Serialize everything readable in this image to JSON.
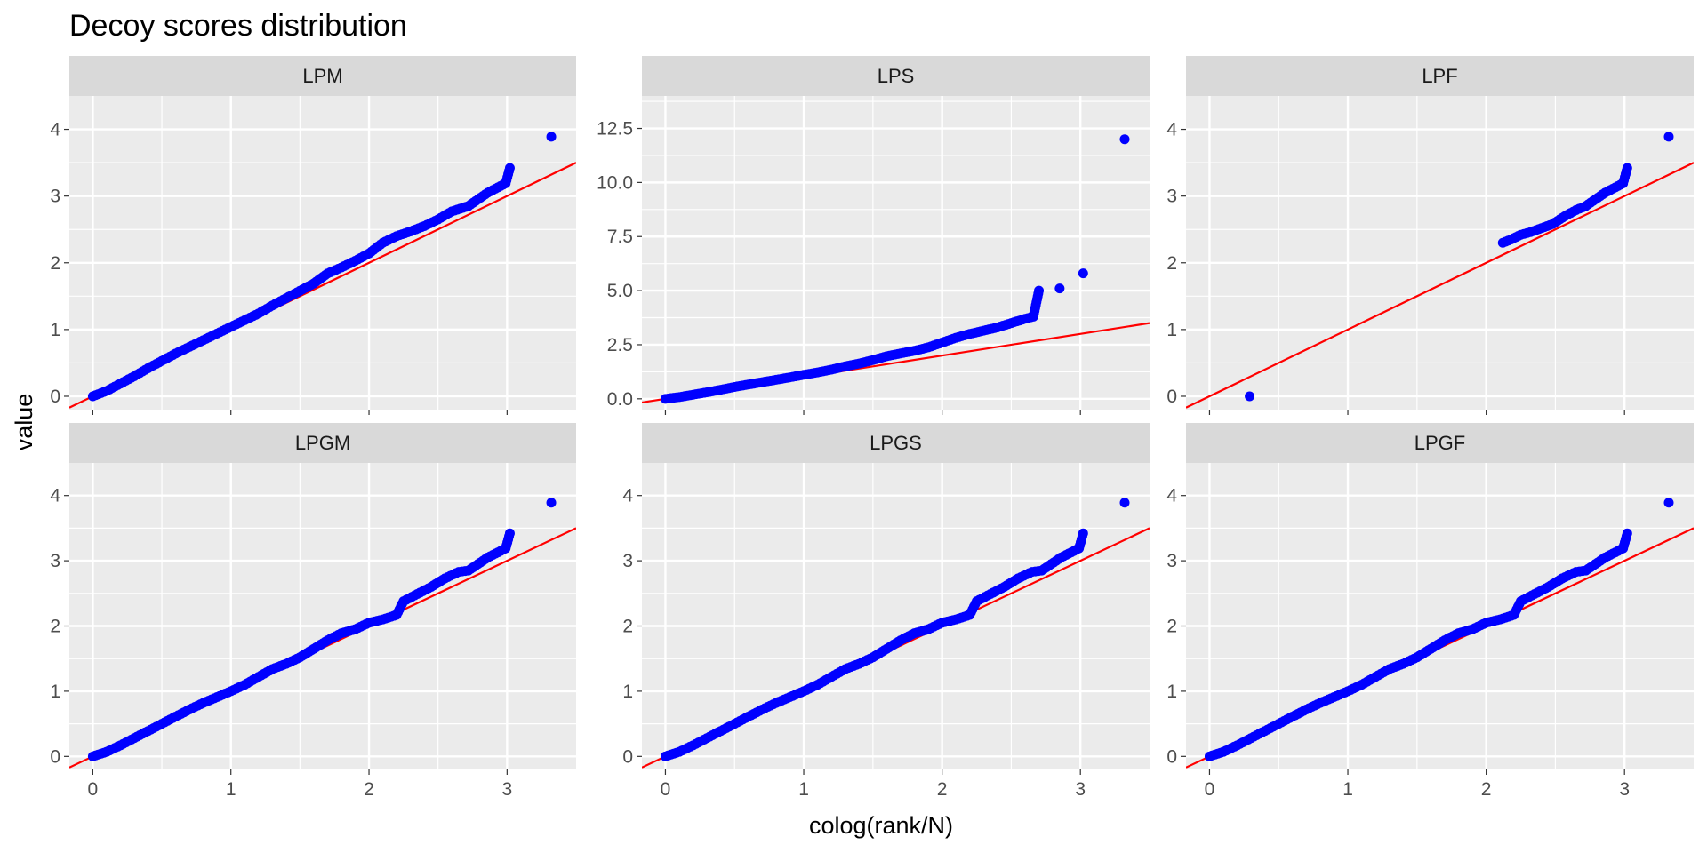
{
  "chart_data": {
    "type": "scatter",
    "title": "Decoy scores distribution",
    "xlabel": "colog(rank/N)",
    "ylabel": "value",
    "colors": {
      "points": "#0000ff",
      "reference_line": "#ff0000",
      "panel_bg": "#ebebeb",
      "strip_bg": "#d9d9d9",
      "grid": "#ffffff"
    },
    "reference_line": {
      "slope": 1,
      "intercept": 0
    },
    "panels": [
      {
        "name": "LPM",
        "xlim": [
          -0.17,
          3.5
        ],
        "ylim": [
          -0.2,
          4.5
        ],
        "xticks": [
          0,
          1,
          2,
          3
        ],
        "yticks": [
          0,
          1,
          2,
          3,
          4
        ],
        "ytick_labels": [
          "0",
          "1",
          "2",
          "3",
          "4"
        ],
        "points": [
          [
            0.0,
            0.0
          ],
          [
            0.1,
            0.08
          ],
          [
            0.2,
            0.19
          ],
          [
            0.3,
            0.3
          ],
          [
            0.4,
            0.42
          ],
          [
            0.5,
            0.53
          ],
          [
            0.6,
            0.64
          ],
          [
            0.7,
            0.74
          ],
          [
            0.8,
            0.84
          ],
          [
            0.9,
            0.94
          ],
          [
            1.0,
            1.04
          ],
          [
            1.1,
            1.14
          ],
          [
            1.2,
            1.24
          ],
          [
            1.3,
            1.36
          ],
          [
            1.4,
            1.47
          ],
          [
            1.5,
            1.58
          ],
          [
            1.6,
            1.69
          ],
          [
            1.7,
            1.84
          ],
          [
            1.8,
            1.93
          ],
          [
            1.9,
            2.03
          ],
          [
            2.0,
            2.14
          ],
          [
            2.1,
            2.3
          ],
          [
            2.2,
            2.4
          ],
          [
            2.3,
            2.47
          ],
          [
            2.4,
            2.55
          ],
          [
            2.5,
            2.65
          ],
          [
            2.6,
            2.77
          ],
          [
            2.72,
            2.85
          ],
          [
            2.86,
            3.05
          ],
          [
            2.99,
            3.19
          ],
          [
            3.02,
            3.42
          ],
          [
            3.32,
            3.89
          ]
        ]
      },
      {
        "name": "LPS",
        "xlim": [
          -0.17,
          3.5
        ],
        "ylim": [
          -0.5,
          14.0
        ],
        "xticks": [
          0,
          1,
          2,
          3
        ],
        "yticks": [
          0,
          2.5,
          5.0,
          7.5,
          10.0,
          12.5
        ],
        "ytick_labels": [
          "0.0",
          "2.5",
          "5.0",
          "7.5",
          "10.0",
          "12.5"
        ],
        "points": [
          [
            0.0,
            0.0
          ],
          [
            0.1,
            0.08
          ],
          [
            0.2,
            0.19
          ],
          [
            0.3,
            0.3
          ],
          [
            0.4,
            0.42
          ],
          [
            0.5,
            0.55
          ],
          [
            0.6,
            0.66
          ],
          [
            0.7,
            0.77
          ],
          [
            0.8,
            0.88
          ],
          [
            0.9,
            0.99
          ],
          [
            1.0,
            1.11
          ],
          [
            1.1,
            1.22
          ],
          [
            1.2,
            1.35
          ],
          [
            1.3,
            1.5
          ],
          [
            1.4,
            1.63
          ],
          [
            1.5,
            1.79
          ],
          [
            1.6,
            1.97
          ],
          [
            1.7,
            2.1
          ],
          [
            1.8,
            2.22
          ],
          [
            1.9,
            2.38
          ],
          [
            2.0,
            2.6
          ],
          [
            2.1,
            2.82
          ],
          [
            2.2,
            3.0
          ],
          [
            2.3,
            3.15
          ],
          [
            2.4,
            3.3
          ],
          [
            2.5,
            3.5
          ],
          [
            2.6,
            3.7
          ],
          [
            2.66,
            3.8
          ],
          [
            2.7,
            5.0
          ],
          [
            2.85,
            5.1
          ],
          [
            3.02,
            5.8
          ],
          [
            3.32,
            12.0
          ]
        ]
      },
      {
        "name": "LPF",
        "xlim": [
          -0.17,
          3.5
        ],
        "ylim": [
          -0.2,
          4.5
        ],
        "xticks": [
          0,
          1,
          2,
          3
        ],
        "yticks": [
          0,
          1,
          2,
          3,
          4
        ],
        "ytick_labels": [
          "0",
          "1",
          "2",
          "3",
          "4"
        ],
        "points": [
          [
            0.29,
            0.0
          ],
          [
            2.12,
            2.3
          ],
          [
            2.18,
            2.35
          ],
          [
            2.25,
            2.42
          ],
          [
            2.32,
            2.46
          ],
          [
            2.4,
            2.52
          ],
          [
            2.48,
            2.58
          ],
          [
            2.57,
            2.7
          ],
          [
            2.65,
            2.79
          ],
          [
            2.72,
            2.85
          ],
          [
            2.86,
            3.05
          ],
          [
            2.99,
            3.19
          ],
          [
            3.02,
            3.42
          ],
          [
            3.32,
            3.89
          ]
        ]
      },
      {
        "name": "LPGM",
        "xlim": [
          -0.17,
          3.5
        ],
        "ylim": [
          -0.2,
          4.5
        ],
        "xticks": [
          0,
          1,
          2,
          3
        ],
        "yticks": [
          0,
          1,
          2,
          3,
          4
        ],
        "ytick_labels": [
          "0",
          "1",
          "2",
          "3",
          "4"
        ],
        "points": [
          [
            0.0,
            0.0
          ],
          [
            0.1,
            0.07
          ],
          [
            0.2,
            0.17
          ],
          [
            0.3,
            0.28
          ],
          [
            0.4,
            0.39
          ],
          [
            0.5,
            0.5
          ],
          [
            0.6,
            0.61
          ],
          [
            0.7,
            0.72
          ],
          [
            0.8,
            0.82
          ],
          [
            0.9,
            0.91
          ],
          [
            1.0,
            1.0
          ],
          [
            1.1,
            1.1
          ],
          [
            1.2,
            1.22
          ],
          [
            1.3,
            1.34
          ],
          [
            1.4,
            1.42
          ],
          [
            1.5,
            1.52
          ],
          [
            1.6,
            1.65
          ],
          [
            1.7,
            1.78
          ],
          [
            1.8,
            1.89
          ],
          [
            1.9,
            1.95
          ],
          [
            2.0,
            2.05
          ],
          [
            2.1,
            2.1
          ],
          [
            2.2,
            2.17
          ],
          [
            2.25,
            2.38
          ],
          [
            2.35,
            2.49
          ],
          [
            2.45,
            2.6
          ],
          [
            2.55,
            2.73
          ],
          [
            2.65,
            2.83
          ],
          [
            2.72,
            2.85
          ],
          [
            2.86,
            3.05
          ],
          [
            2.99,
            3.19
          ],
          [
            3.02,
            3.42
          ],
          [
            3.32,
            3.89
          ]
        ]
      },
      {
        "name": "LPGS",
        "xlim": [
          -0.17,
          3.5
        ],
        "ylim": [
          -0.2,
          4.5
        ],
        "xticks": [
          0,
          1,
          2,
          3
        ],
        "yticks": [
          0,
          1,
          2,
          3,
          4
        ],
        "ytick_labels": [
          "0",
          "1",
          "2",
          "3",
          "4"
        ],
        "points": [
          [
            0.0,
            0.0
          ],
          [
            0.1,
            0.07
          ],
          [
            0.2,
            0.17
          ],
          [
            0.3,
            0.28
          ],
          [
            0.4,
            0.39
          ],
          [
            0.5,
            0.5
          ],
          [
            0.6,
            0.61
          ],
          [
            0.7,
            0.72
          ],
          [
            0.8,
            0.82
          ],
          [
            0.9,
            0.91
          ],
          [
            1.0,
            1.0
          ],
          [
            1.1,
            1.1
          ],
          [
            1.2,
            1.22
          ],
          [
            1.3,
            1.34
          ],
          [
            1.4,
            1.42
          ],
          [
            1.5,
            1.52
          ],
          [
            1.6,
            1.65
          ],
          [
            1.7,
            1.78
          ],
          [
            1.8,
            1.89
          ],
          [
            1.9,
            1.95
          ],
          [
            2.0,
            2.05
          ],
          [
            2.1,
            2.1
          ],
          [
            2.2,
            2.17
          ],
          [
            2.25,
            2.38
          ],
          [
            2.35,
            2.49
          ],
          [
            2.45,
            2.6
          ],
          [
            2.55,
            2.73
          ],
          [
            2.65,
            2.83
          ],
          [
            2.72,
            2.85
          ],
          [
            2.86,
            3.05
          ],
          [
            2.99,
            3.19
          ],
          [
            3.02,
            3.42
          ],
          [
            3.32,
            3.89
          ]
        ]
      },
      {
        "name": "LPGF",
        "xlim": [
          -0.17,
          3.5
        ],
        "ylim": [
          -0.2,
          4.5
        ],
        "xticks": [
          0,
          1,
          2,
          3
        ],
        "yticks": [
          0,
          1,
          2,
          3,
          4
        ],
        "ytick_labels": [
          "0",
          "1",
          "2",
          "3",
          "4"
        ],
        "points": [
          [
            0.0,
            0.0
          ],
          [
            0.1,
            0.07
          ],
          [
            0.2,
            0.17
          ],
          [
            0.3,
            0.28
          ],
          [
            0.4,
            0.39
          ],
          [
            0.5,
            0.5
          ],
          [
            0.6,
            0.61
          ],
          [
            0.7,
            0.72
          ],
          [
            0.8,
            0.82
          ],
          [
            0.9,
            0.91
          ],
          [
            1.0,
            1.0
          ],
          [
            1.1,
            1.1
          ],
          [
            1.2,
            1.22
          ],
          [
            1.3,
            1.34
          ],
          [
            1.4,
            1.42
          ],
          [
            1.5,
            1.52
          ],
          [
            1.6,
            1.65
          ],
          [
            1.7,
            1.78
          ],
          [
            1.8,
            1.89
          ],
          [
            1.9,
            1.95
          ],
          [
            2.0,
            2.05
          ],
          [
            2.1,
            2.1
          ],
          [
            2.2,
            2.17
          ],
          [
            2.25,
            2.38
          ],
          [
            2.35,
            2.49
          ],
          [
            2.45,
            2.6
          ],
          [
            2.55,
            2.73
          ],
          [
            2.65,
            2.83
          ],
          [
            2.72,
            2.85
          ],
          [
            2.86,
            3.05
          ],
          [
            2.99,
            3.19
          ],
          [
            3.02,
            3.42
          ],
          [
            3.32,
            3.89
          ]
        ]
      }
    ]
  }
}
